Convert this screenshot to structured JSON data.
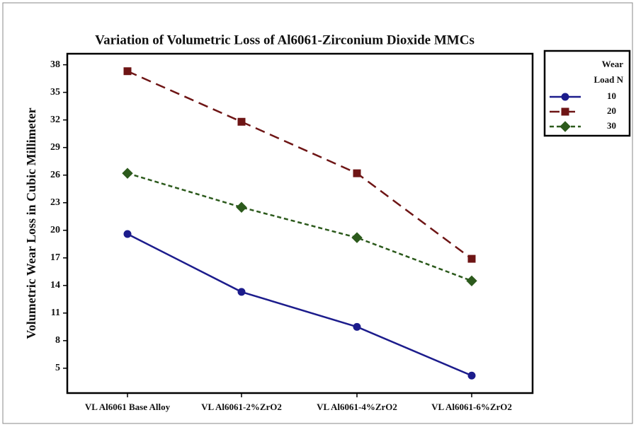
{
  "chart_data": {
    "type": "line",
    "title": "Variation of Volumetric Loss of Al6061-Zirconium Dioxide MMCs",
    "y_label": "Volumetric Wear Loss in Cubic Millimeter",
    "categories": [
      "VL Al6061 Base Alloy",
      "VL Al6061-2%ZrO2",
      "VL Al6061-4%ZrO2",
      "VL Al6061-6%ZrO2"
    ],
    "series": [
      {
        "name": "10",
        "color": "#1c1c8c",
        "marker": "circle",
        "dash": "solid",
        "values": [
          19.6,
          13.3,
          9.5,
          4.2
        ]
      },
      {
        "name": "20",
        "color": "#6e1515",
        "marker": "square",
        "dash": "long",
        "values": [
          37.3,
          31.8,
          26.2,
          16.9
        ]
      },
      {
        "name": "30",
        "color": "#2c5a1c",
        "marker": "diamond",
        "dash": "short",
        "values": [
          26.2,
          22.5,
          19.2,
          14.5
        ]
      }
    ],
    "legend_title": [
      "Wear",
      "Load N"
    ],
    "legend": "outside-right",
    "ylim": [
      2.3,
      39.2
    ],
    "yticks": [
      5,
      8,
      11,
      14,
      17,
      20,
      23,
      26,
      29,
      32,
      35,
      38
    ]
  }
}
